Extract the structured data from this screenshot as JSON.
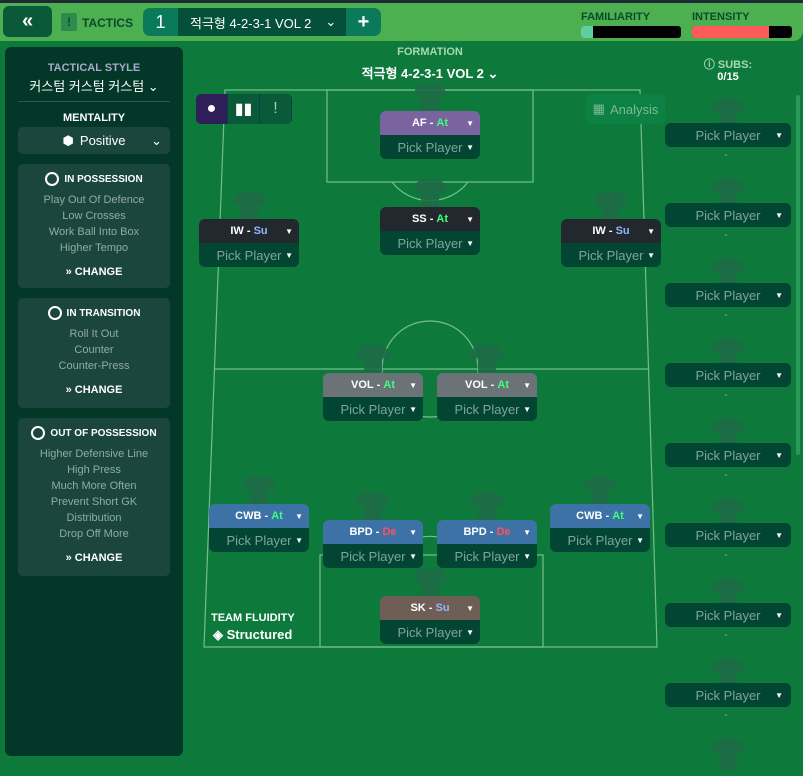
{
  "topbar": {
    "back_icon": "double-chevron-left",
    "tactics_label": "TACTICS",
    "tab_number": "1",
    "tactic_name": "적극형 4-2-3-1 VOL 2",
    "add_label": "+",
    "familiarity_label": "FAMILIARITY",
    "familiarity_value": 0.12,
    "intensity_label": "INTENSITY",
    "intensity_value": 0.77
  },
  "sidebar": {
    "style_label": "TACTICAL STYLE",
    "style_value": "커스텀 커스텀 커스텀",
    "mentality_label": "MENTALITY",
    "mentality_value": "Positive",
    "sections": [
      {
        "title": "IN POSSESSION",
        "items": [
          "Play Out Of Defence",
          "Low Crosses",
          "Work Ball Into Box",
          "Higher Tempo"
        ],
        "change": "CHANGE"
      },
      {
        "title": "IN TRANSITION",
        "items": [
          "Roll It Out",
          "Counter",
          "Counter-Press"
        ],
        "change": "CHANGE"
      },
      {
        "title": "OUT OF POSSESSION",
        "items": [
          "Higher Defensive Line",
          "High Press",
          "Much More Often",
          "Prevent Short GK",
          "Distribution",
          "Drop Off More"
        ],
        "change": "CHANGE"
      }
    ]
  },
  "formation": {
    "label": "FORMATION",
    "name": "적극형 4-2-3-1 VOL 2",
    "analysis_label": "Analysis",
    "fluidity_label": "TEAM FLUIDITY",
    "fluidity_value": "Structured"
  },
  "colors": {
    "attack": "#3dff7a",
    "support": "#8fb8ff",
    "defend": "#ff5060"
  },
  "positions": [
    {
      "role": "AF",
      "duty": "At",
      "player": "Pick Player",
      "color": "#7a64a0"
    },
    {
      "role": "SS",
      "duty": "At",
      "player": "Pick Player",
      "color": "#23272e"
    },
    {
      "role": "IW",
      "duty": "Su",
      "player": "Pick Player",
      "color": "#23272e"
    },
    {
      "role": "IW",
      "duty": "Su",
      "player": "Pick Player",
      "color": "#23272e"
    },
    {
      "role": "VOL",
      "duty": "At",
      "player": "Pick Player",
      "color": "#6c7378"
    },
    {
      "role": "VOL",
      "duty": "At",
      "player": "Pick Player",
      "color": "#6c7378"
    },
    {
      "role": "CWB",
      "duty": "At",
      "player": "Pick Player",
      "color": "#3d72a6"
    },
    {
      "role": "BPD",
      "duty": "De",
      "player": "Pick Player",
      "color": "#3d72a6"
    },
    {
      "role": "BPD",
      "duty": "De",
      "player": "Pick Player",
      "color": "#3d72a6"
    },
    {
      "role": "CWB",
      "duty": "At",
      "player": "Pick Player",
      "color": "#3d72a6"
    },
    {
      "role": "SK",
      "duty": "Su",
      "player": "Pick Player",
      "color": "#6e5e55"
    }
  ],
  "subs": {
    "label": "SUBS:",
    "count": "0/15",
    "slots": [
      "Pick Player",
      "Pick Player",
      "Pick Player",
      "Pick Player",
      "Pick Player",
      "Pick Player",
      "Pick Player",
      "Pick Player"
    ],
    "empty": "-"
  }
}
